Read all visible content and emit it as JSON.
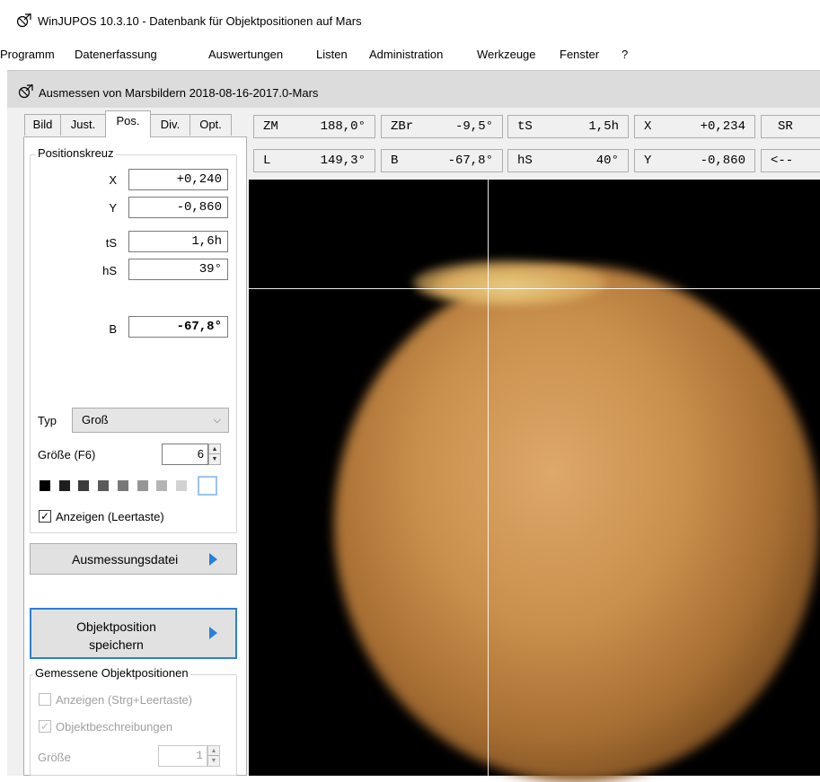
{
  "window": {
    "title": "WinJUPOS 10.3.10 - Datenbank für Objektpositionen auf Mars"
  },
  "menu": [
    "Programm",
    "Datenerfassung",
    "Auswertungen",
    "Listen",
    "Administration",
    "Werkzeuge",
    "Fenster",
    "?"
  ],
  "subwindow": {
    "title": "Ausmessen von Marsbildern  2018-08-16-2017.0-Mars"
  },
  "tabs": [
    {
      "label": "Bild",
      "active": false
    },
    {
      "label": "Just.",
      "active": false
    },
    {
      "label": "Pos.",
      "active": true
    },
    {
      "label": "Div.",
      "active": false
    },
    {
      "label": "Opt.",
      "active": false
    }
  ],
  "positionskreuz": {
    "group_label": "Positionskreuz",
    "fields": [
      {
        "label": "X",
        "value": "+0,240"
      },
      {
        "label": "Y",
        "value": "-0,860"
      },
      {
        "label": "tS",
        "value": "1,6h"
      },
      {
        "label": "hS",
        "value": "39°"
      },
      {
        "label": "B",
        "value": "-67,8°"
      }
    ],
    "typ_label": "Typ",
    "typ_value": "Groß",
    "size_label": "Größe (F6)",
    "size_value": "6",
    "swatches": [
      "#000000",
      "#1e1e1e",
      "#3c3c3c",
      "#5a5a5a",
      "#787878",
      "#969696",
      "#b4b4b4",
      "#d2d2d2",
      "#ffffff"
    ],
    "show_label": "Anzeigen (Leertaste)",
    "show_checked": true
  },
  "buttons": {
    "ausmessungsdatei": "Ausmessungsdatei",
    "objektposition_line1": "Objektposition",
    "objektposition_line2": "speichern"
  },
  "gemessene": {
    "group_label": "Gemessene Objektpositionen",
    "show_label": "Anzeigen (Strg+Leertaste)",
    "desc_label": "Objektbeschreibungen",
    "size_label": "Größe",
    "size_value": "1"
  },
  "info_row1": [
    {
      "key": "ZM",
      "value": "188,0°"
    },
    {
      "key": "ZBr",
      "value": "-9,5°"
    },
    {
      "key": "tS",
      "value": "1,5h"
    },
    {
      "key": "X",
      "value": "+0,234"
    },
    {
      "key": "SR",
      "value": ""
    }
  ],
  "info_row2": [
    {
      "key": "L",
      "value": "149,3°"
    },
    {
      "key": "B",
      "value": "-67,8°"
    },
    {
      "key": "hS",
      "value": "40°"
    },
    {
      "key": "Y",
      "value": "-0,860"
    },
    {
      "key": "<--",
      "value": ""
    }
  ],
  "icons": {
    "title": "satellite-dish-icon",
    "subwindow": "satellite-dish-icon",
    "button_arrow": "play-arrow-icon",
    "combo": "chevron-down-icon"
  },
  "colors": {
    "accent": "#2b7fd4",
    "image_bg": "#000000"
  }
}
